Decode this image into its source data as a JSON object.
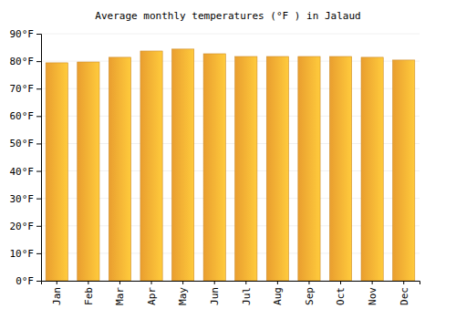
{
  "chart_data": {
    "type": "bar",
    "title": "Average monthly temperatures (°F ) in Jalaud",
    "categories": [
      "Jan",
      "Feb",
      "Mar",
      "Apr",
      "May",
      "Jun",
      "Jul",
      "Aug",
      "Sep",
      "Oct",
      "Nov",
      "Dec"
    ],
    "values": [
      79.4,
      79.7,
      81.4,
      83.7,
      84.4,
      82.7,
      81.7,
      81.7,
      81.7,
      81.7,
      81.4,
      80.4
    ],
    "color": "#ffad33",
    "ylim": [
      0,
      90
    ],
    "yticks": [
      {
        "value": 0,
        "label": "0°F"
      },
      {
        "value": 10,
        "label": "10°F"
      },
      {
        "value": 20,
        "label": "20°F"
      },
      {
        "value": 30,
        "label": "30°F"
      },
      {
        "value": 40,
        "label": "40°F"
      },
      {
        "value": 50,
        "label": "50°F"
      },
      {
        "value": 60,
        "label": "60°F"
      },
      {
        "value": 70,
        "label": "70°F"
      },
      {
        "value": 80,
        "label": "80°F"
      },
      {
        "value": 90,
        "label": "90°F"
      }
    ],
    "grid": true
  }
}
